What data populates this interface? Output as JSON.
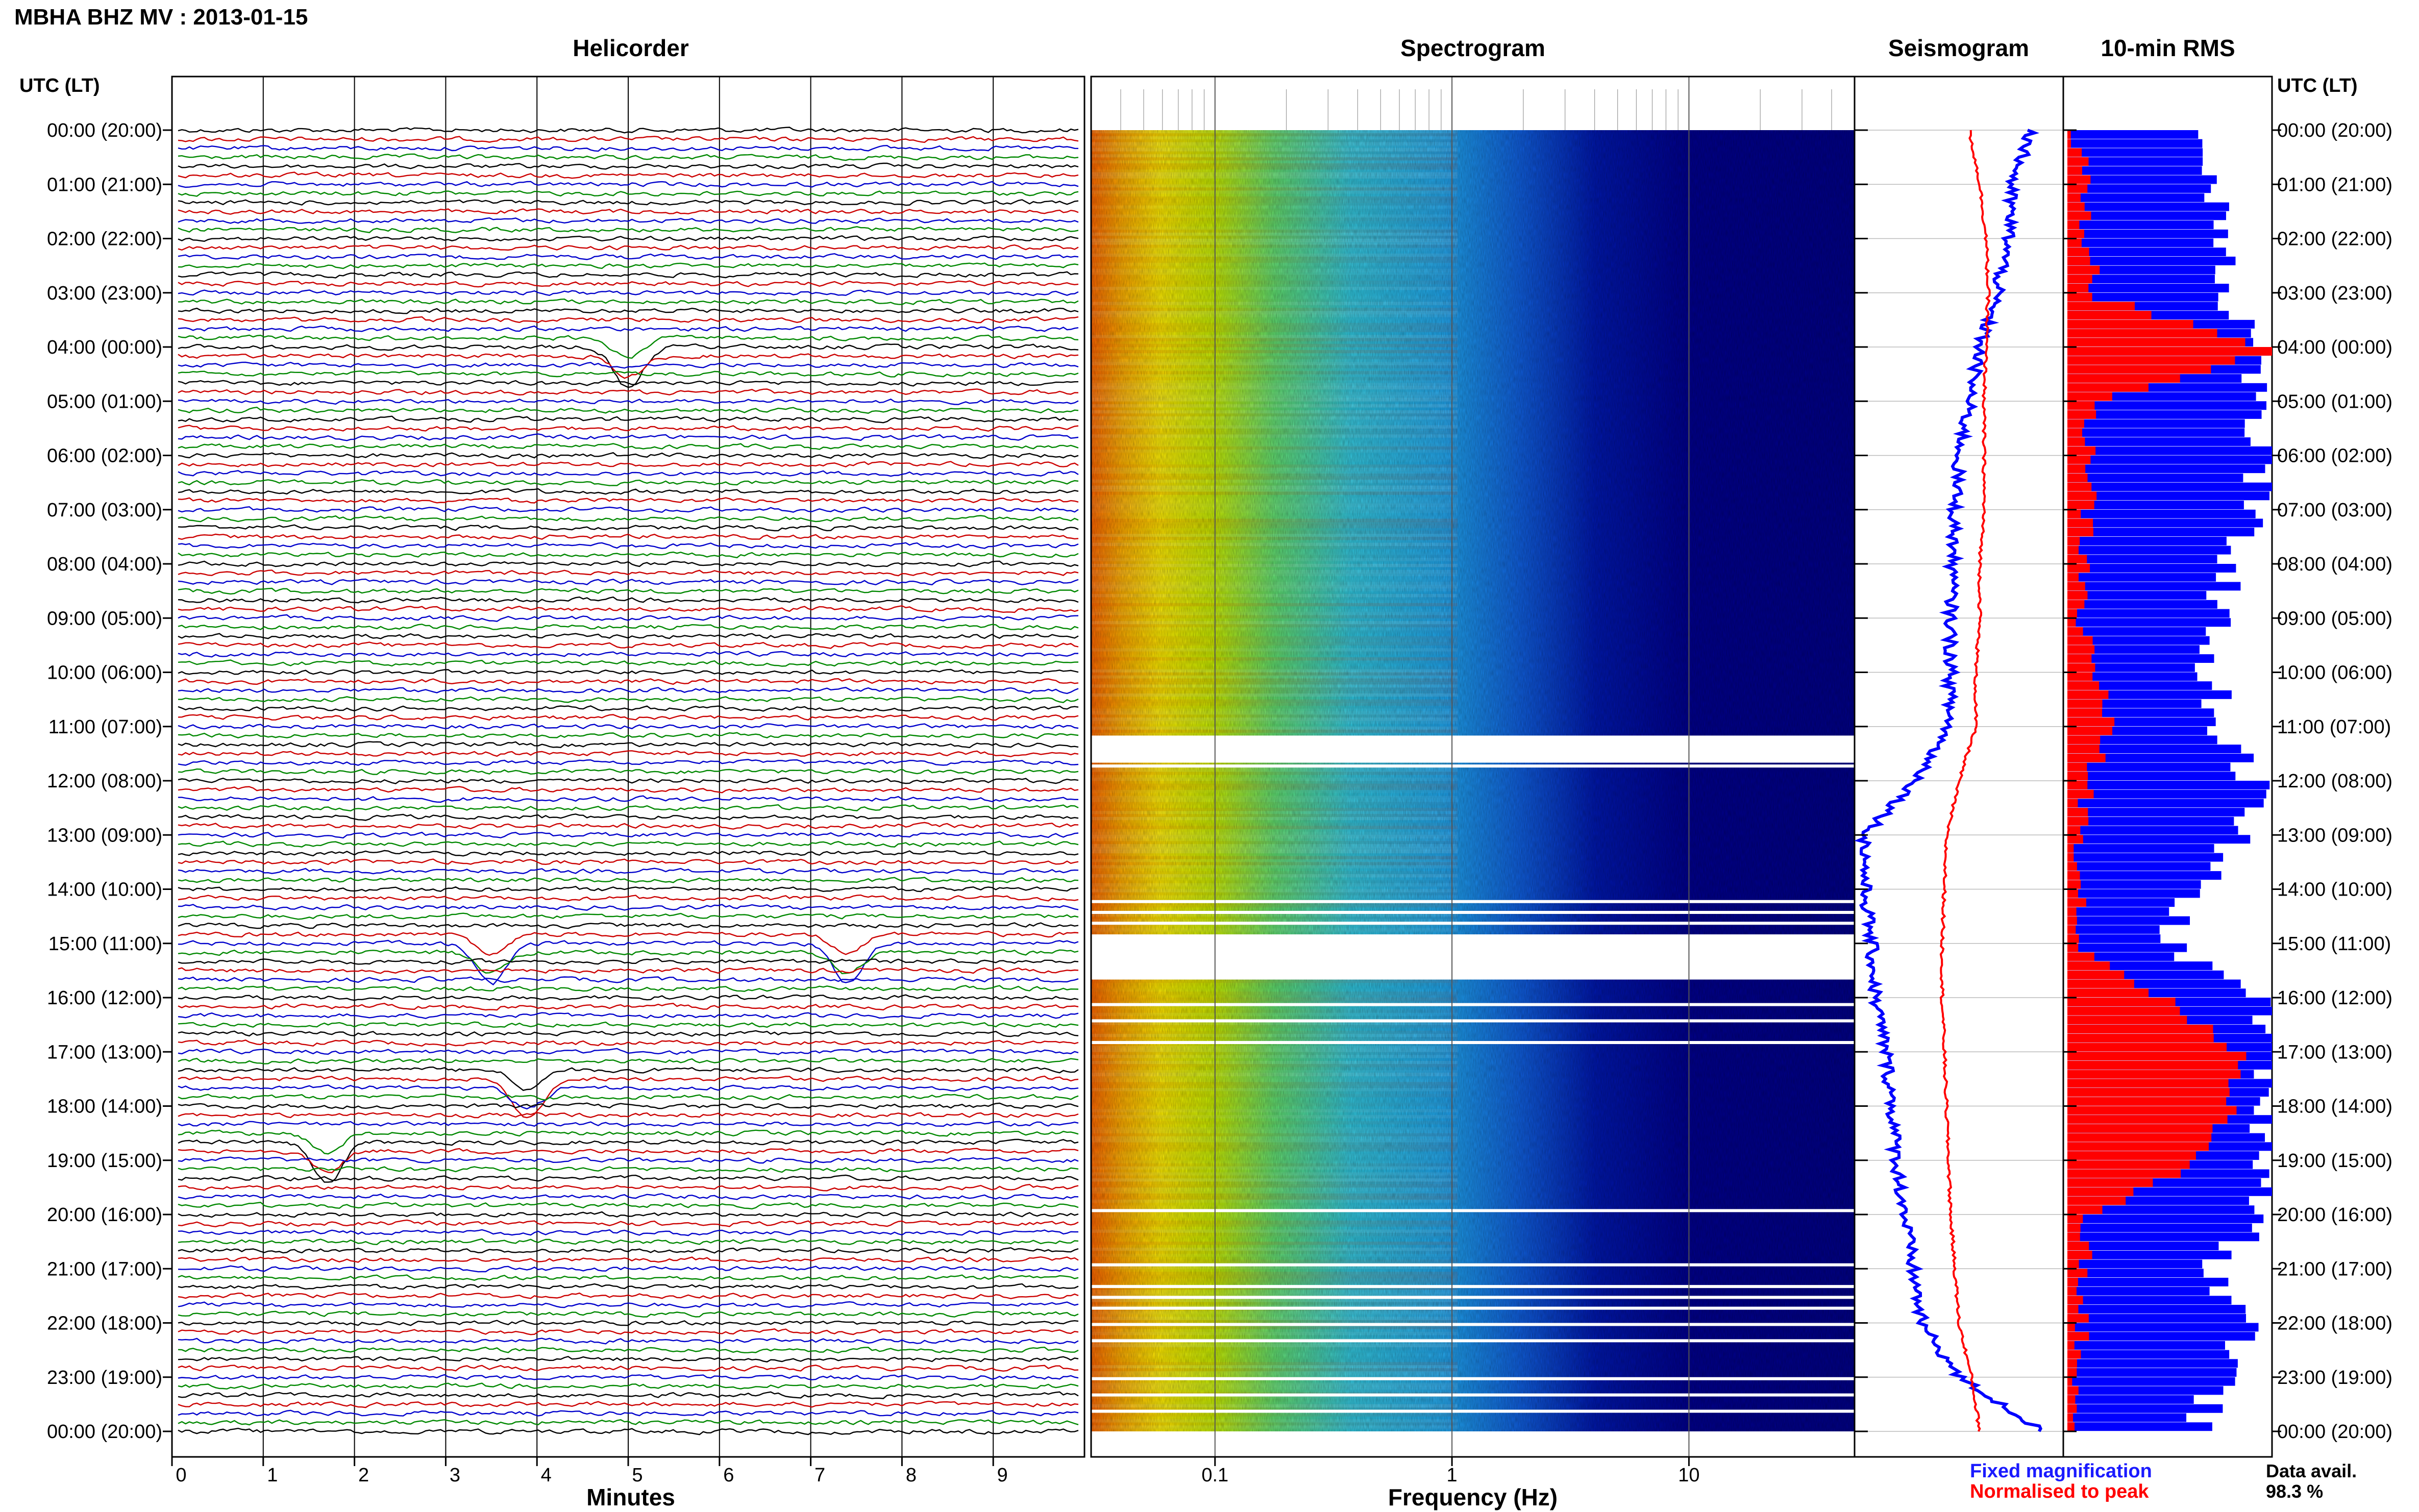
{
  "header": {
    "station_title": "MBHA BHZ MV : 2013-01-15"
  },
  "panels": {
    "helicorder": "Helicorder",
    "spectrogram": "Spectrogram",
    "seismogram": "Seismogram",
    "rms": "10-min RMS"
  },
  "axis": {
    "utc_label_left": "UTC (LT)",
    "utc_label_right": "UTC (LT)",
    "time_ticks": [
      "00:00 (20:00)",
      "01:00 (21:00)",
      "02:00 (22:00)",
      "03:00 (23:00)",
      "04:00 (00:00)",
      "05:00 (01:00)",
      "06:00 (02:00)",
      "07:00 (03:00)",
      "08:00 (04:00)",
      "09:00 (05:00)",
      "10:00 (06:00)",
      "11:00 (07:00)",
      "12:00 (08:00)",
      "13:00 (09:00)",
      "14:00 (10:00)",
      "15:00 (11:00)",
      "16:00 (12:00)",
      "17:00 (13:00)",
      "18:00 (14:00)",
      "19:00 (15:00)",
      "20:00 (16:00)",
      "21:00 (17:00)",
      "22:00 (18:00)",
      "23:00 (19:00)",
      "00:00 (20:00)"
    ],
    "minutes_label": "Minutes",
    "minute_ticks": [
      "0",
      "1",
      "2",
      "3",
      "4",
      "5",
      "6",
      "7",
      "8",
      "9"
    ],
    "frequency_label": "Frequency (Hz)",
    "frequency_ticks": [
      "0.1",
      "1",
      "10"
    ]
  },
  "legend": {
    "fixed": "Fixed magnification",
    "normalised": "Normalised to peak",
    "fixed_color": "#1a1aff",
    "normalised_color": "#ff0000"
  },
  "data_availability": {
    "label": "Data avail.",
    "value": "98.3 %"
  },
  "colors": {
    "trace_cycle": [
      "#000000",
      "#cc0000",
      "#0000cc",
      "#008800"
    ],
    "rms_fixed": "#0000ff",
    "rms_norm": "#ff0000",
    "spectro_low": "#00008f",
    "spectro_high": "#ff6000"
  },
  "chart_data": [
    {
      "type": "line",
      "title": "Helicorder",
      "xlabel": "Minutes",
      "xlim": [
        0,
        10
      ],
      "ylim": [
        "00:00",
        "24:00"
      ],
      "row_interval_minutes": 10,
      "description_events": [
        {
          "utc": "04:00",
          "minute": 5.0
        },
        {
          "utc": "15:00",
          "minute": 3.5
        },
        {
          "utc": "15:00",
          "minute": 7.4
        },
        {
          "utc": "17:30",
          "minute": 3.9
        },
        {
          "utc": "18:40",
          "minute": 1.7
        }
      ]
    },
    {
      "type": "heatmap",
      "title": "Spectrogram",
      "xlabel": "Frequency (Hz)",
      "xscale": "log",
      "xlim": [
        0.03,
        50
      ],
      "gap_intervals_utc": [
        [
          "11:10",
          "11:40"
        ],
        [
          "14:50",
          "15:40"
        ]
      ]
    },
    {
      "type": "line",
      "title": "Seismogram",
      "series": [
        {
          "name": "Fixed magnification",
          "utc_hours": [
            0,
            1,
            2,
            3,
            4,
            5,
            6,
            7,
            8,
            9,
            10,
            11,
            12,
            13,
            14,
            15,
            16,
            17,
            18,
            19,
            20,
            21,
            22,
            23,
            24
          ],
          "values": [
            0.85,
            0.75,
            0.74,
            0.68,
            0.6,
            0.55,
            0.5,
            0.48,
            0.47,
            0.46,
            0.46,
            0.45,
            0.3,
            0.05,
            0.05,
            0.08,
            0.1,
            0.15,
            0.18,
            0.2,
            0.24,
            0.28,
            0.32,
            0.5,
            0.9
          ]
        },
        {
          "name": "Normalised to peak",
          "utc_hours": [
            0,
            1,
            2,
            3,
            4,
            5,
            6,
            7,
            8,
            9,
            10,
            11,
            12,
            13,
            14,
            15,
            16,
            17,
            18,
            19,
            20,
            21,
            22,
            23,
            24
          ],
          "values": [
            0.55,
            0.6,
            0.63,
            0.64,
            0.63,
            0.62,
            0.62,
            0.62,
            0.6,
            0.6,
            0.58,
            0.58,
            0.5,
            0.44,
            0.43,
            0.42,
            0.42,
            0.43,
            0.44,
            0.45,
            0.46,
            0.48,
            0.5,
            0.56,
            0.6
          ]
        }
      ]
    },
    {
      "type": "bar",
      "title": "10-min RMS",
      "series": [
        {
          "name": "Fixed magnification",
          "utc_hours": [
            0,
            1,
            2,
            3,
            4,
            5,
            6,
            7,
            8,
            9,
            10,
            11,
            12,
            13,
            14,
            15,
            16,
            17,
            18,
            19,
            20,
            21,
            22,
            23,
            24
          ],
          "values": [
            0.62,
            0.72,
            0.8,
            0.78,
            0.95,
            0.9,
            0.95,
            0.88,
            0.8,
            0.72,
            0.7,
            0.75,
            0.92,
            0.82,
            0.6,
            0.5,
            0.98,
            1.0,
            0.98,
            0.98,
            0.95,
            0.7,
            0.9,
            0.75,
            0.6
          ]
        },
        {
          "name": "Normalised to peak",
          "utc_hours": [
            0,
            1,
            2,
            3,
            4,
            5,
            6,
            7,
            8,
            9,
            10,
            11,
            12,
            13,
            14,
            15,
            16,
            17,
            18,
            19,
            20,
            21,
            22,
            23,
            24
          ],
          "values": [
            0.05,
            0.08,
            0.1,
            0.15,
            1.0,
            0.1,
            0.12,
            0.1,
            0.08,
            0.07,
            0.15,
            0.2,
            0.1,
            0.07,
            0.07,
            0.06,
            0.5,
            0.85,
            0.8,
            0.6,
            0.1,
            0.08,
            0.07,
            0.05,
            0.05
          ]
        }
      ]
    }
  ]
}
